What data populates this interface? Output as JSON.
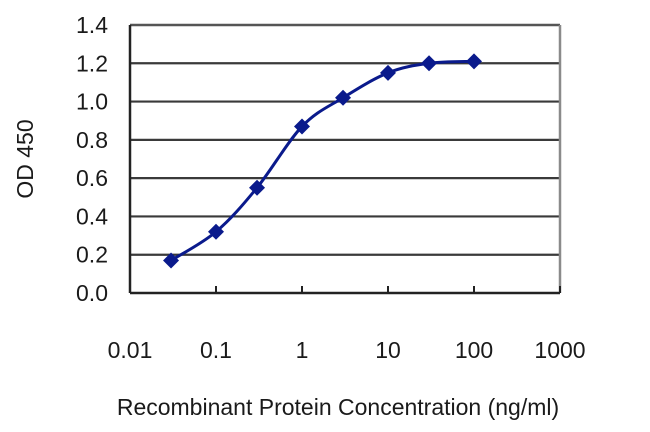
{
  "chart_data": {
    "type": "line",
    "title": "",
    "xlabel": "Recombinant Protein Concentration (ng/ml)",
    "ylabel": "OD 450",
    "xscale": "log",
    "xlim": [
      0.01,
      1000
    ],
    "ylim": [
      0.0,
      1.4
    ],
    "x_ticks": [
      "0.01",
      "0.1",
      "1",
      "10",
      "100",
      "1000"
    ],
    "y_ticks": [
      "0.0",
      "0.2",
      "0.4",
      "0.6",
      "0.8",
      "1.0",
      "1.2",
      "1.4"
    ],
    "grid": "horizontal",
    "legend": null,
    "series": [
      {
        "name": "OD 450",
        "color": "#0a1a8c",
        "marker": "diamond",
        "x": [
          0.03,
          0.1,
          0.3,
          1,
          3,
          10,
          30,
          100
        ],
        "y": [
          0.17,
          0.32,
          0.55,
          0.87,
          1.02,
          1.15,
          1.2,
          1.21
        ]
      }
    ]
  },
  "colors": {
    "series": "#0a1a8c",
    "grid": "#3a3a3a",
    "frame": "#555555",
    "text": "#1a1a1a"
  }
}
